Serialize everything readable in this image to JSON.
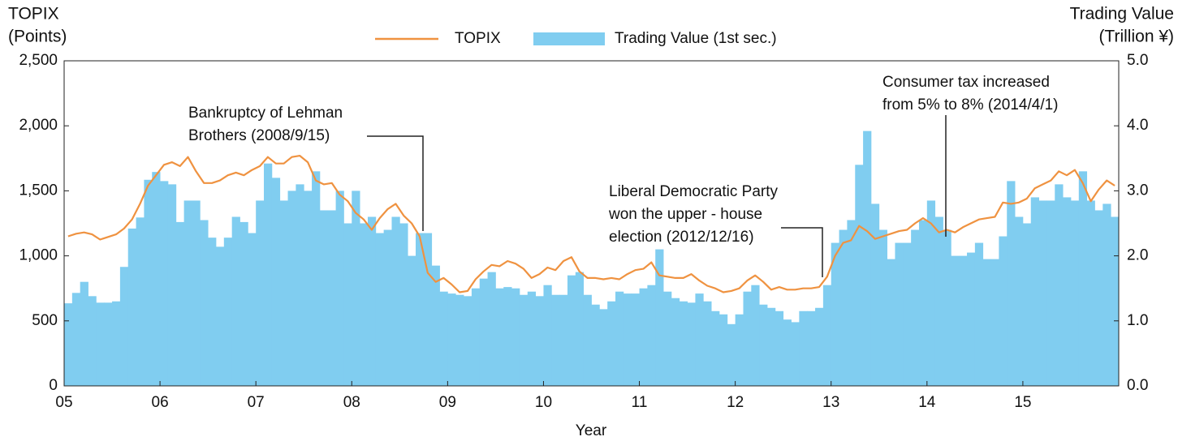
{
  "chart_data": {
    "type": "bar-line",
    "y_title": [
      "TOPIX",
      "(Points)"
    ],
    "y2_title": [
      "Trading Value",
      "(Trillion ¥)"
    ],
    "x_title": "Year",
    "categories": [
      "05",
      null,
      null,
      null,
      null,
      null,
      null,
      null,
      null,
      null,
      null,
      null,
      "06",
      null,
      null,
      null,
      null,
      null,
      null,
      null,
      null,
      null,
      null,
      null,
      "07",
      null,
      null,
      null,
      null,
      null,
      null,
      null,
      null,
      null,
      null,
      null,
      "08",
      null,
      null,
      null,
      null,
      null,
      null,
      null,
      null,
      null,
      null,
      null,
      "09",
      null,
      null,
      null,
      null,
      null,
      null,
      null,
      null,
      null,
      null,
      null,
      "10",
      null,
      null,
      null,
      null,
      null,
      null,
      null,
      null,
      null,
      null,
      null,
      "11",
      null,
      null,
      null,
      null,
      null,
      null,
      null,
      null,
      null,
      null,
      null,
      "12",
      null,
      null,
      null,
      null,
      null,
      null,
      null,
      null,
      null,
      null,
      null,
      "13",
      null,
      null,
      null,
      null,
      null,
      null,
      null,
      null,
      null,
      null,
      null,
      "14",
      null,
      null,
      null,
      null,
      null,
      null,
      null,
      null,
      null,
      null,
      null,
      "15",
      null,
      null,
      null,
      null,
      null,
      null,
      null,
      null,
      null,
      null,
      null
    ],
    "series": [
      {
        "name": "TOPIX",
        "color": "#ef9240",
        "kind": "line",
        "axis": "y",
        "values": [
          1150,
          1170,
          1180,
          1165,
          1125,
          1145,
          1165,
          1210,
          1280,
          1400,
          1540,
          1620,
          1700,
          1720,
          1690,
          1760,
          1650,
          1560,
          1560,
          1580,
          1620,
          1640,
          1620,
          1660,
          1690,
          1760,
          1710,
          1710,
          1760,
          1770,
          1720,
          1580,
          1550,
          1560,
          1470,
          1420,
          1330,
          1280,
          1200,
          1290,
          1360,
          1400,
          1310,
          1250,
          1150,
          870,
          800,
          830,
          780,
          720,
          730,
          820,
          880,
          930,
          920,
          960,
          940,
          900,
          830,
          860,
          910,
          890,
          960,
          990,
          880,
          830,
          830,
          820,
          830,
          820,
          860,
          890,
          900,
          950,
          850,
          840,
          830,
          830,
          860,
          810,
          770,
          750,
          720,
          730,
          750,
          810,
          850,
          800,
          740,
          760,
          740,
          740,
          750,
          750,
          760,
          840,
          1000,
          1100,
          1120,
          1230,
          1190,
          1130,
          1150,
          1170,
          1190,
          1200,
          1250,
          1290,
          1250,
          1180,
          1200,
          1180,
          1220,
          1250,
          1280,
          1290,
          1300,
          1410,
          1400,
          1410,
          1440,
          1520,
          1550,
          1580,
          1650,
          1620,
          1660,
          1560,
          1420,
          1510,
          1580,
          1540
        ]
      },
      {
        "name": "Trading Value (1st sec.)",
        "color": "#80cdf0",
        "kind": "bar",
        "axis": "y2",
        "values": [
          1.27,
          1.43,
          1.6,
          1.38,
          1.28,
          1.28,
          1.3,
          1.83,
          2.42,
          2.59,
          3.17,
          3.29,
          3.15,
          3.1,
          2.52,
          2.85,
          2.85,
          2.55,
          2.28,
          2.14,
          2.28,
          2.6,
          2.52,
          2.35,
          2.85,
          3.42,
          3.2,
          2.85,
          3.0,
          3.1,
          3.0,
          3.3,
          2.7,
          2.7,
          3.0,
          2.5,
          3.0,
          2.5,
          2.6,
          2.35,
          2.4,
          2.6,
          2.5,
          2.0,
          2.35,
          2.35,
          1.85,
          1.45,
          1.42,
          1.4,
          1.38,
          1.5,
          1.65,
          1.75,
          1.5,
          1.52,
          1.5,
          1.4,
          1.45,
          1.38,
          1.55,
          1.4,
          1.4,
          1.7,
          1.75,
          1.4,
          1.25,
          1.18,
          1.3,
          1.45,
          1.42,
          1.42,
          1.5,
          1.55,
          2.1,
          1.45,
          1.35,
          1.3,
          1.28,
          1.42,
          1.3,
          1.15,
          1.1,
          0.95,
          1.1,
          1.45,
          1.55,
          1.25,
          1.2,
          1.15,
          1.02,
          0.98,
          1.15,
          1.15,
          1.2,
          1.55,
          2.2,
          2.4,
          2.55,
          3.4,
          3.92,
          2.8,
          2.4,
          1.95,
          2.2,
          2.2,
          2.4,
          2.55,
          2.85,
          2.6,
          2.4,
          2.0,
          2.0,
          2.05,
          2.2,
          1.95,
          1.95,
          2.3,
          3.15,
          2.6,
          2.5,
          2.9,
          2.85,
          2.85,
          3.1,
          2.9,
          2.85,
          3.3,
          2.85,
          2.7,
          2.8,
          2.6
        ]
      }
    ],
    "ylim": [
      0,
      2500
    ],
    "yticks": [
      0,
      500,
      {
        "value": 1000,
        "label": "1,000"
      },
      {
        "value": 1500,
        "label": "1,500"
      },
      {
        "value": 2000,
        "label": "2,000"
      },
      {
        "value": 2500,
        "label": "2,500"
      }
    ],
    "y2lim": [
      0,
      5
    ],
    "y2ticks": [
      {
        "value": 0,
        "label": "0.0"
      },
      {
        "value": 1,
        "label": "1.0"
      },
      {
        "value": 2,
        "label": "2.0"
      },
      {
        "value": 3,
        "label": "3.0"
      },
      {
        "value": 4,
        "label": "4.0"
      },
      {
        "value": 5,
        "label": "5.0"
      }
    ],
    "annotations": [
      {
        "lines": [
          "Bankruptcy of Lehman",
          "Brothers (2008/9/15)"
        ]
      },
      {
        "lines": [
          "Liberal Democratic Party",
          "won the upper - house",
          "election (2012/12/16)"
        ]
      },
      {
        "lines": [
          "Consumer tax increased",
          "from 5% to 8% (2014/4/1)"
        ]
      }
    ]
  }
}
